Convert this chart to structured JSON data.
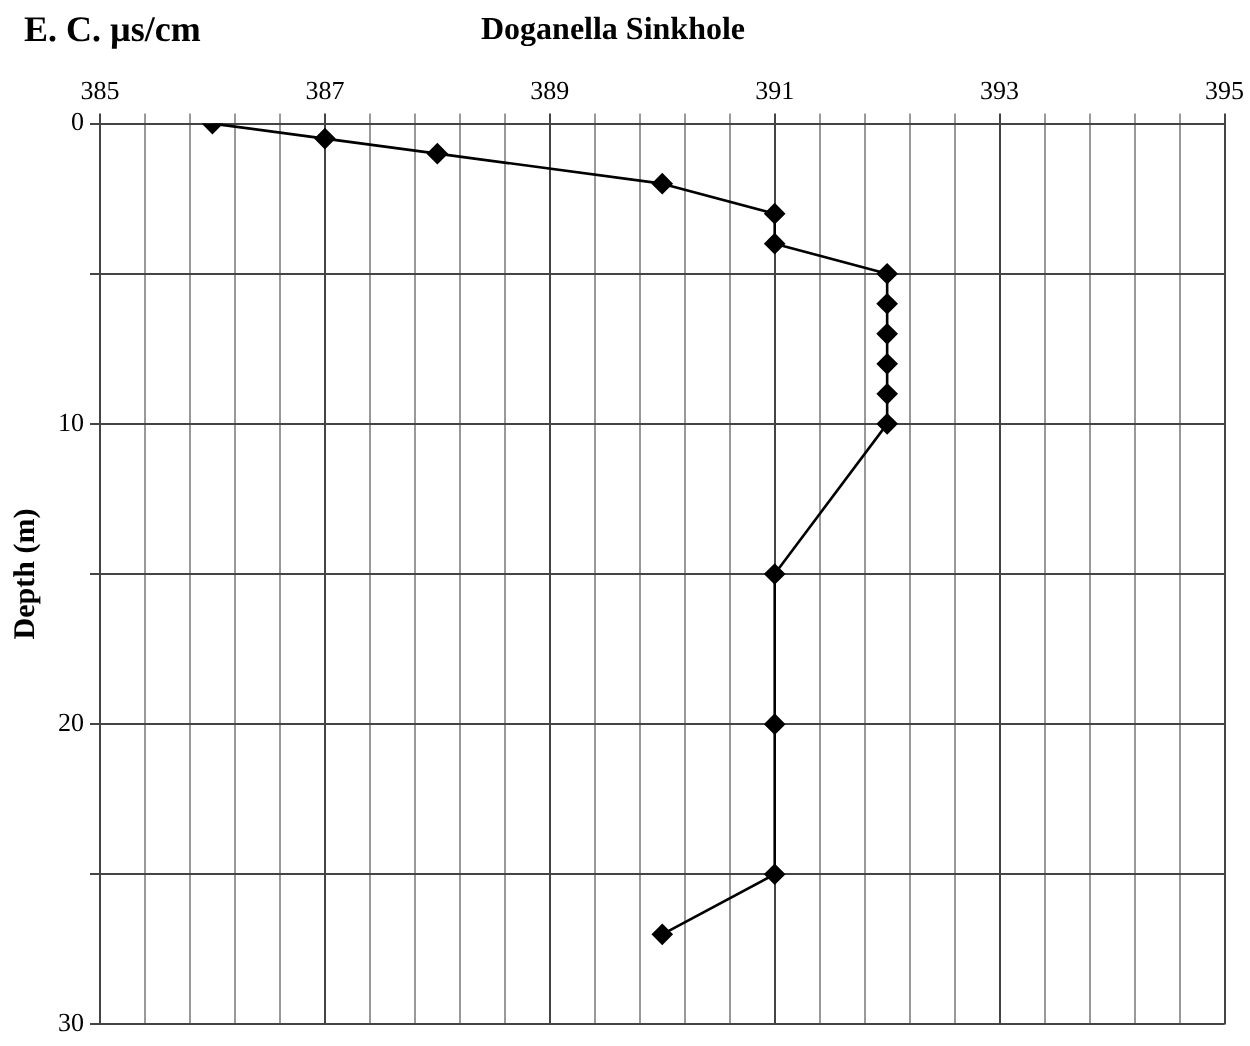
{
  "chart_data": {
    "type": "line",
    "title": "Doganella Sinkhole",
    "xlabel": "E. C. µs/cm",
    "ylabel": "Depth (m)",
    "x": [
      386,
      387,
      388,
      390,
      391,
      391,
      392,
      392,
      392,
      392,
      392,
      392,
      391,
      391,
      391,
      390
    ],
    "series": [
      {
        "color": "#000000",
        "values": [
          0,
          0.5,
          1,
          2,
          3,
          4,
          5,
          6,
          7,
          8,
          9,
          10,
          15,
          20,
          25,
          27
        ]
      }
    ],
    "xlim": [
      385,
      395
    ],
    "xticks": [
      385,
      {
        "value": 385.4,
        "label": null
      },
      {
        "value": 385.8,
        "label": null
      },
      {
        "value": 386.2,
        "label": null
      },
      {
        "value": 386.6,
        "label": null
      },
      387,
      {
        "value": 387.4,
        "label": null
      },
      {
        "value": 387.8,
        "label": null
      },
      {
        "value": 388.2,
        "label": null
      },
      {
        "value": 388.6,
        "label": null
      },
      389,
      {
        "value": 389.4,
        "label": null
      },
      {
        "value": 389.8,
        "label": null
      },
      {
        "value": 390.2,
        "label": null
      },
      {
        "value": 390.6,
        "label": null
      },
      391,
      {
        "value": 391.4,
        "label": null
      },
      {
        "value": 391.8,
        "label": null
      },
      {
        "value": 392.2,
        "label": null
      },
      {
        "value": 392.6,
        "label": null
      },
      393,
      {
        "value": 393.4,
        "label": null
      },
      {
        "value": 393.8,
        "label": null
      },
      {
        "value": 394.2,
        "label": null
      },
      {
        "value": 394.6,
        "label": null
      },
      395
    ],
    "ylim": [
      30,
      0
    ],
    "yticks": [
      0,
      {
        "value": 5,
        "label": null
      },
      10,
      {
        "value": 15,
        "label": null
      },
      20,
      {
        "value": 25,
        "label": null
      },
      30
    ],
    "grid": true,
    "legend": false,
    "marker": "diamond",
    "line_style": "solid"
  }
}
